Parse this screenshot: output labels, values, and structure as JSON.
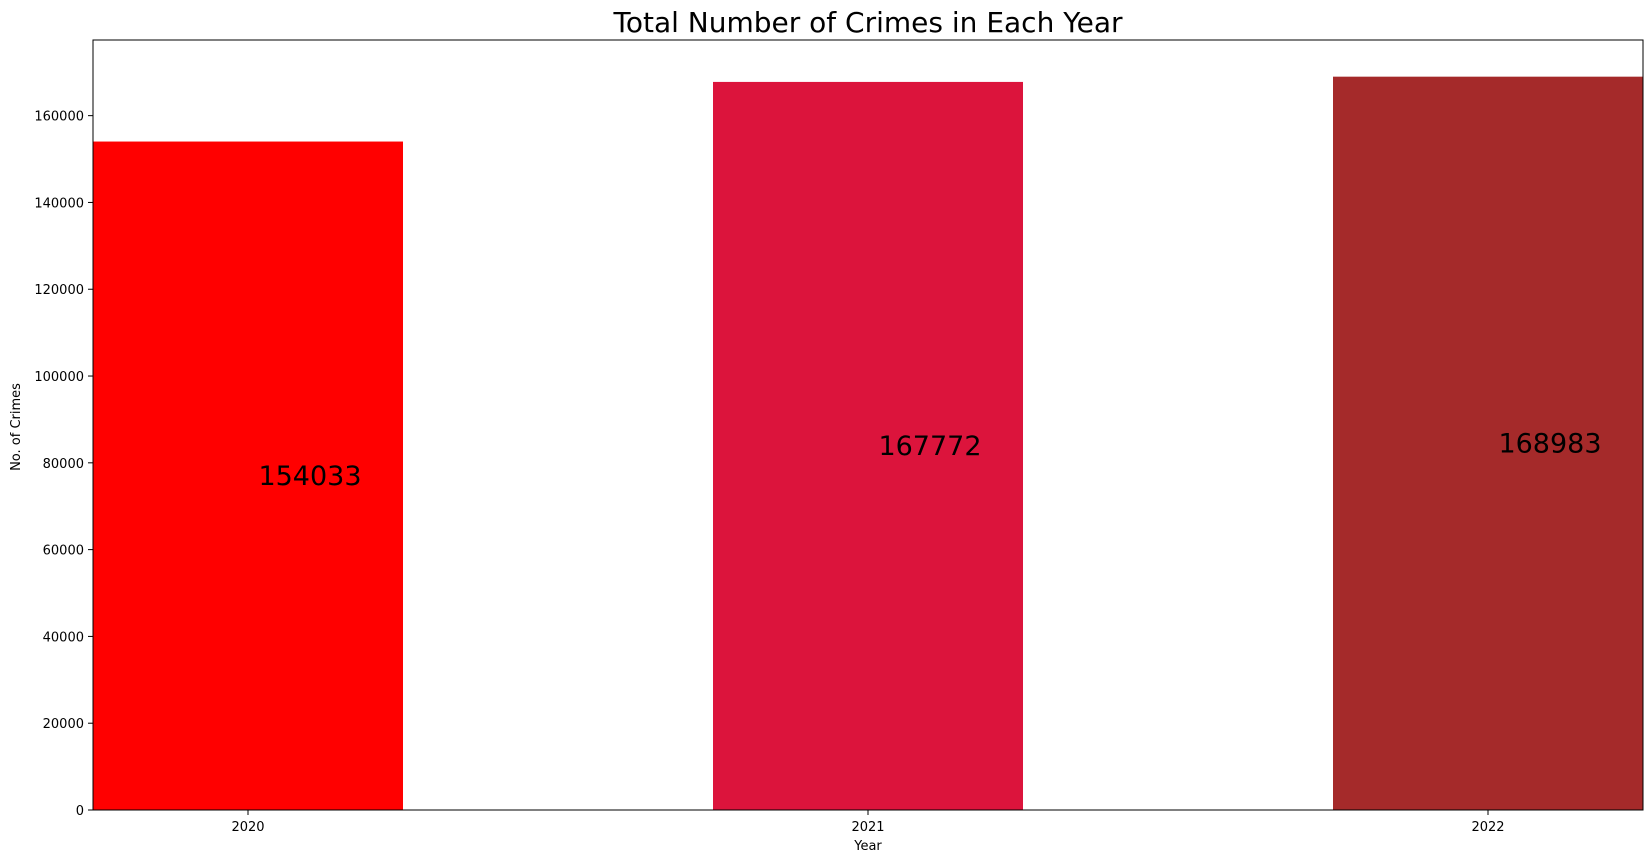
{
  "chart_data": {
    "type": "bar",
    "title": "Total Number of Crimes in Each Year",
    "xlabel": "Year",
    "ylabel": "No. of Crimes",
    "categories": [
      "2020",
      "2021",
      "2022"
    ],
    "values": [
      154033,
      167772,
      168983
    ],
    "data_labels": [
      "154033",
      "167772",
      "168983"
    ],
    "bar_colors": [
      "#ff0000",
      "#dc143c",
      "#a52a2a"
    ],
    "ylim": [
      0,
      177432
    ],
    "yticks": [
      0,
      20000,
      40000,
      60000,
      80000,
      100000,
      120000,
      140000,
      160000
    ],
    "ytick_labels": [
      "0",
      "20000",
      "40000",
      "60000",
      "80000",
      "100000",
      "120000",
      "140000",
      "160000"
    ],
    "grid": false,
    "legend": "none"
  }
}
